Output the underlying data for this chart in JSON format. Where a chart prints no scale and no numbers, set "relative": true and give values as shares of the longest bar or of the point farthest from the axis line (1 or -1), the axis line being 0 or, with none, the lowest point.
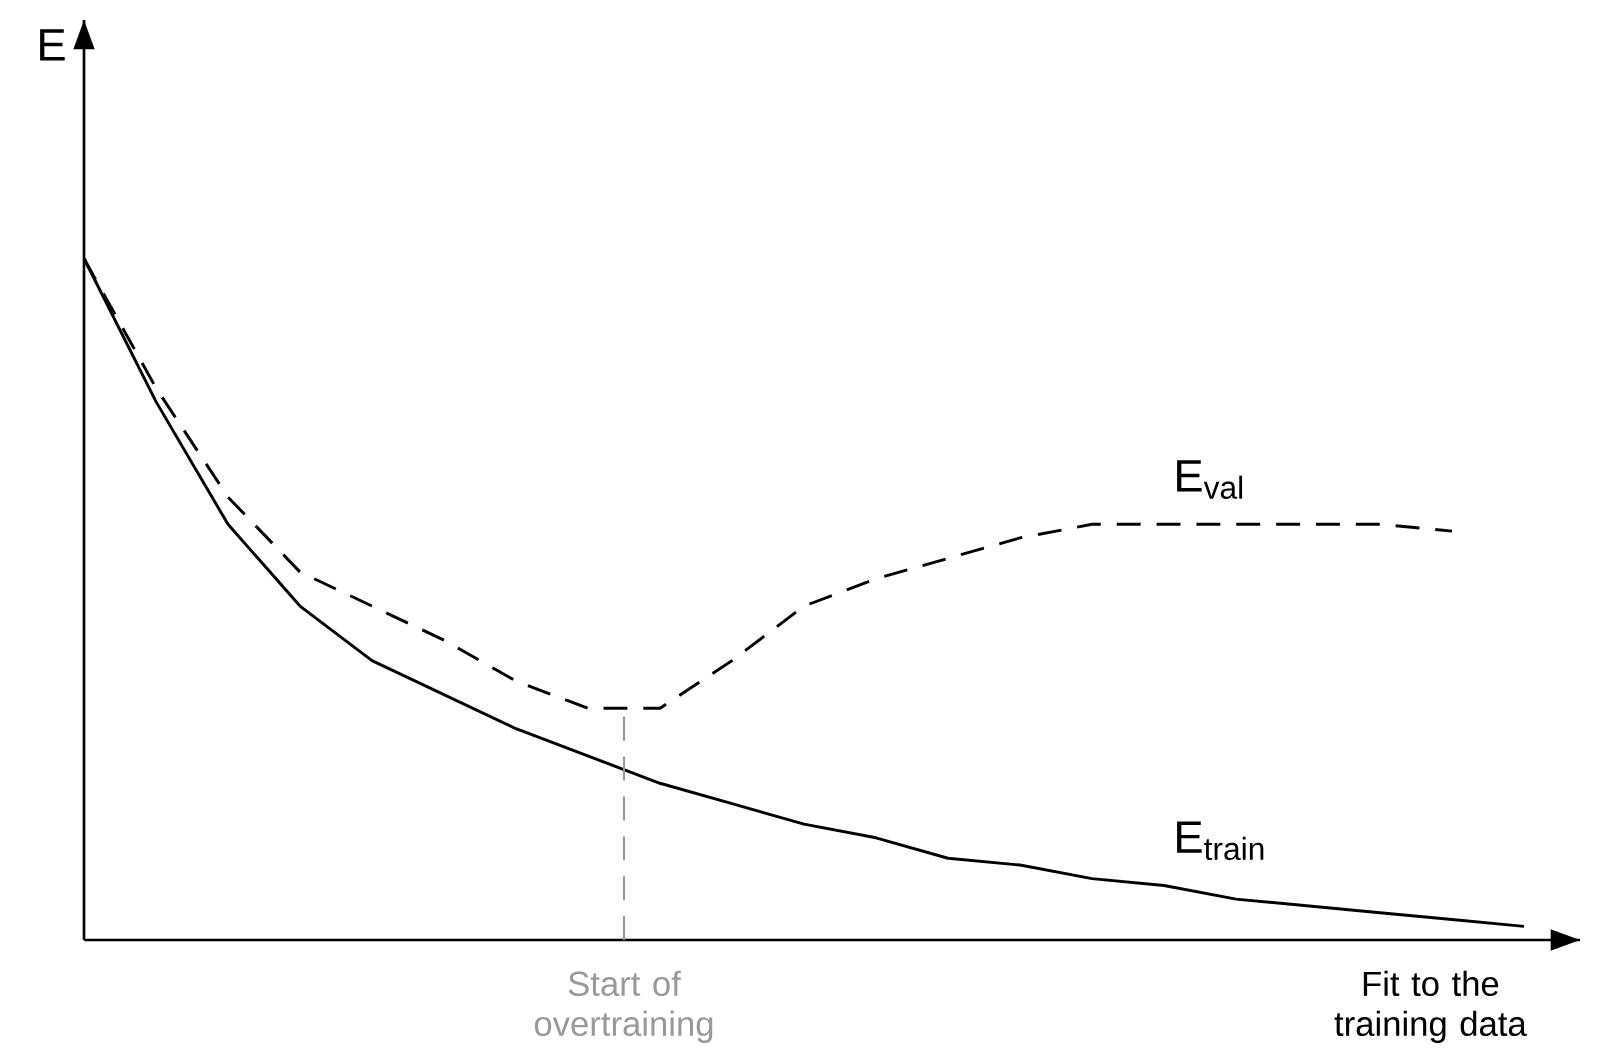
{
  "chart_data": {
    "type": "line",
    "relative": true,
    "xlabel": "Fit to the training data",
    "ylabel": "E",
    "categories": [
      null,
      null,
      null,
      null,
      null,
      null,
      null,
      null,
      null,
      null,
      null,
      null,
      null,
      null,
      null,
      null,
      null,
      null,
      null,
      null,
      null
    ],
    "series": [
      {
        "name": "E$_{train}$",
        "color": "#000000",
        "line_style": "solid",
        "values": [
          1.0,
          0.79,
          0.61,
          0.49,
          0.41,
          0.36,
          0.31,
          0.27,
          0.23,
          0.2,
          0.17,
          0.15,
          0.12,
          0.11,
          0.09,
          0.08,
          0.06,
          0.05,
          0.04,
          0.03,
          0.02
        ]
      },
      {
        "name": "E$_{val}$",
        "color": "#000000",
        "line_style": "dashed",
        "values": [
          1.0,
          0.81,
          0.65,
          0.54,
          0.49,
          0.44,
          0.38,
          0.34,
          0.34,
          0.41,
          0.49,
          0.53,
          0.56,
          0.59,
          0.61,
          0.61,
          0.61,
          0.61,
          0.61,
          0.6,
          null
        ]
      }
    ],
    "annotations": [
      "Start of overtraining"
    ]
  }
}
